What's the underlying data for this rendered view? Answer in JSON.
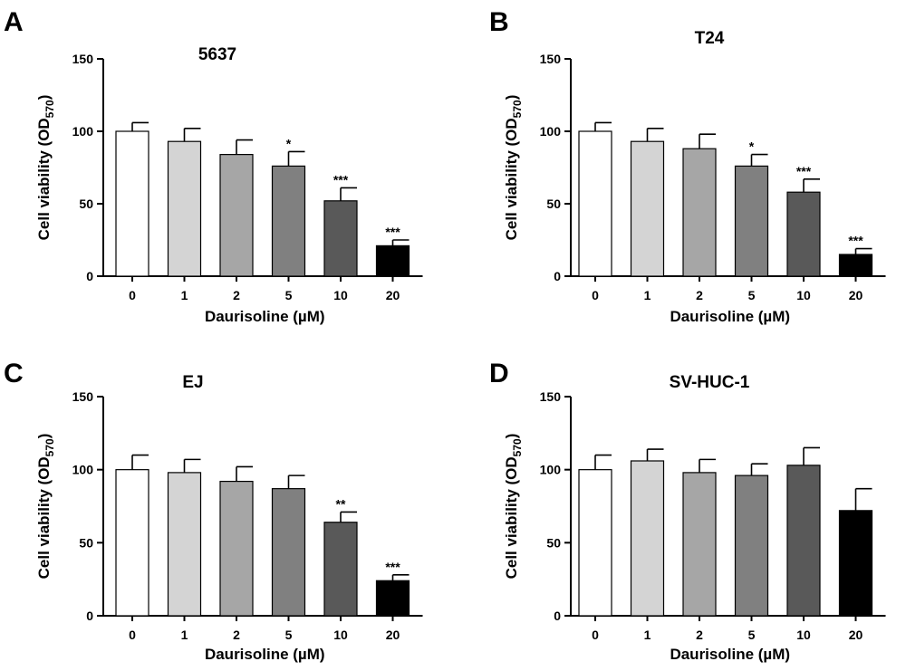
{
  "figure": {
    "categories": [
      "0",
      "1",
      "2",
      "5",
      "10",
      "20"
    ],
    "bar_colors": [
      "#ffffff",
      "#d4d4d4",
      "#a6a6a6",
      "#808080",
      "#595959",
      "#000000"
    ]
  },
  "chart_data": [
    {
      "type": "bar",
      "panel_letter": "A",
      "title": "5637",
      "xlabel": "Daurisoline (µM)",
      "ylabel_main": "Cell viability (OD",
      "ylabel_sub": "570",
      "ylabel_close": ")",
      "ylim": [
        0,
        150
      ],
      "yticks": [
        "0",
        "50",
        "100",
        "150"
      ],
      "categories": [
        "0",
        "1",
        "2",
        "5",
        "10",
        "20"
      ],
      "values": [
        100,
        93,
        84,
        76,
        52,
        21
      ],
      "errors": [
        6,
        9,
        10,
        10,
        9,
        4
      ],
      "significance": [
        "",
        "",
        "",
        "*",
        "***",
        "***"
      ]
    },
    {
      "type": "bar",
      "panel_letter": "B",
      "title": "T24",
      "xlabel": "Daurisoline (µM)",
      "ylabel_main": "Cell viability (OD",
      "ylabel_sub": "570",
      "ylabel_close": ")",
      "ylim": [
        0,
        150
      ],
      "yticks": [
        "0",
        "50",
        "100",
        "150"
      ],
      "categories": [
        "0",
        "1",
        "2",
        "5",
        "10",
        "20"
      ],
      "values": [
        100,
        93,
        88,
        76,
        58,
        15
      ],
      "errors": [
        6,
        9,
        10,
        8,
        9,
        4
      ],
      "significance": [
        "",
        "",
        "",
        "*",
        "***",
        "***"
      ]
    },
    {
      "type": "bar",
      "panel_letter": "C",
      "title": "EJ",
      "xlabel": "Daurisoline (µM)",
      "ylabel_main": "Cell viability (OD",
      "ylabel_sub": "570",
      "ylabel_close": ")",
      "ylim": [
        0,
        150
      ],
      "yticks": [
        "0",
        "50",
        "100",
        "150"
      ],
      "categories": [
        "0",
        "1",
        "2",
        "5",
        "10",
        "20"
      ],
      "values": [
        100,
        98,
        92,
        87,
        64,
        24
      ],
      "errors": [
        10,
        9,
        10,
        9,
        7,
        4
      ],
      "significance": [
        "",
        "",
        "",
        "",
        "**",
        "***"
      ]
    },
    {
      "type": "bar",
      "panel_letter": "D",
      "title": "SV-HUC-1",
      "xlabel": "Daurisoline (µM)",
      "ylabel_main": "Cell viability (OD",
      "ylabel_sub": "570",
      "ylabel_close": ")",
      "ylim": [
        0,
        150
      ],
      "yticks": [
        "0",
        "50",
        "100",
        "150"
      ],
      "categories": [
        "0",
        "1",
        "2",
        "5",
        "10",
        "20"
      ],
      "values": [
        100,
        106,
        98,
        96,
        103,
        72
      ],
      "errors": [
        10,
        8,
        9,
        8,
        12,
        15
      ],
      "significance": [
        "",
        "",
        "",
        "",
        "",
        ""
      ]
    }
  ]
}
